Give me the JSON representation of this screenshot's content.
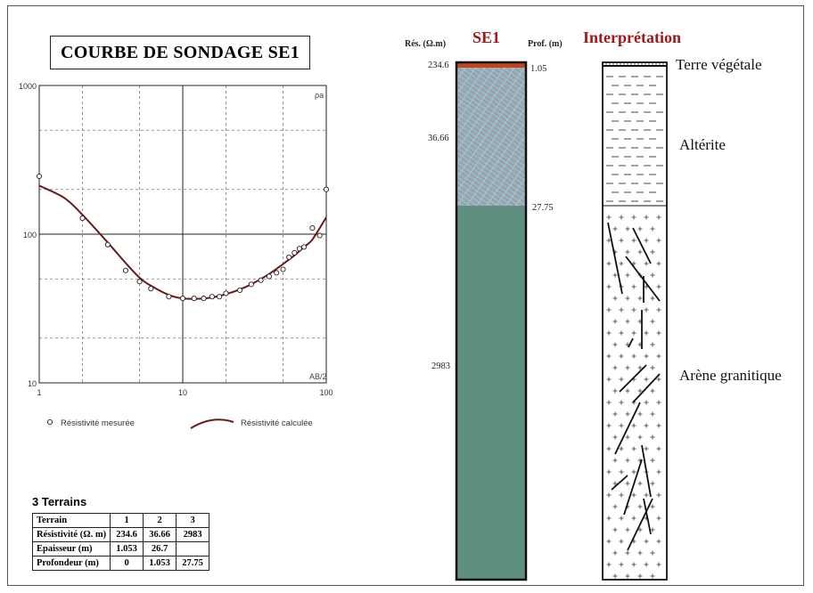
{
  "figure": {
    "left_title": "COURBE DE SONDAGE SE1",
    "colors": {
      "calc_curve": "#6b1a1a",
      "top_layer": "#c0451c",
      "alterite_fill": "#8db8cc",
      "alterite_pattern": "#b98a7c",
      "arene_fill": "#5f8f80",
      "title_red": "#a01818"
    }
  },
  "chart_data": [
    {
      "type": "scatter",
      "xscale": "log",
      "yscale": "log",
      "xlim": [
        1,
        100
      ],
      "ylim": [
        10,
        1000
      ],
      "xticks": [
        "1",
        "10",
        "100"
      ],
      "yticks": [
        "1000",
        "100",
        "10"
      ],
      "corner_labels": {
        "top_right": "ρa",
        "bottom_right": "AB/2"
      },
      "legend": {
        "measured": "Résistivité mesurée",
        "calculated": "Résistivité calculée"
      },
      "grid": true,
      "series": [
        {
          "name": "Résistivité mesurée",
          "marker": "circle",
          "x": [
            1,
            2,
            3,
            4,
            5,
            6,
            8,
            10,
            12,
            14,
            16,
            18,
            20,
            25,
            30,
            35,
            40,
            45,
            50,
            55,
            60,
            65,
            70,
            80,
            90,
            100
          ],
          "y": [
            245,
            128,
            85,
            57,
            48,
            43,
            38,
            37,
            37,
            37,
            38,
            38,
            40,
            42,
            46,
            49,
            52,
            55,
            58,
            70,
            75,
            80,
            82,
            110,
            98,
            200
          ]
        },
        {
          "name": "Résistivité calculée",
          "marker": "none",
          "x": [
            1,
            1.5,
            2,
            3,
            4,
            5,
            6,
            8,
            10,
            13,
            16,
            20,
            25,
            30,
            40,
            50,
            60,
            70,
            80,
            100
          ],
          "y": [
            212,
            175,
            135,
            88,
            64,
            51,
            45,
            39,
            37,
            36.8,
            37.5,
            39.5,
            42.5,
            46,
            54,
            63,
            72,
            82,
            92,
            130
          ]
        }
      ]
    },
    {
      "type": "table",
      "title": "SE1",
      "headers": {
        "res": "Rés. (Ω.m)",
        "prof": "Prof. (m)",
        "interp": "Interprétation"
      },
      "layers": [
        {
          "resistivity": "234.6",
          "depth_base": "1.05",
          "label": "Terre végétale"
        },
        {
          "resistivity": "36.66",
          "depth_base": "27.75",
          "label": "Altérite"
        },
        {
          "resistivity": "2983",
          "depth_base": "",
          "label": "Arène granitique"
        }
      ]
    }
  ],
  "terrains": {
    "title": "3 Terrains",
    "header": [
      "Terrain",
      "1",
      "2",
      "3"
    ],
    "rows": [
      [
        "Résistivité (Ω. m)",
        "234.6",
        "36.66",
        "2983"
      ],
      [
        "Epaisseur (m)",
        "1.053",
        "26.7",
        ""
      ],
      [
        "Profondeur (m)",
        "0",
        "1.053",
        "27.75"
      ]
    ]
  }
}
